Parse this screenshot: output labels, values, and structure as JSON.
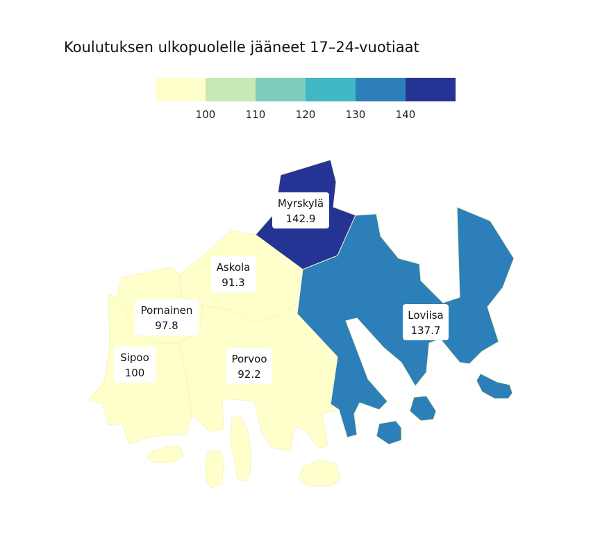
{
  "title": "Koulutuksen ulkopuolelle jääneet 17–24-vuotiaat",
  "legend": {
    "bins": [
      {
        "color": "#ffffcc"
      },
      {
        "color": "#c7e9b4"
      },
      {
        "color": "#7fcdbb"
      },
      {
        "color": "#41b6c4"
      },
      {
        "color": "#2c7fb8"
      },
      {
        "color": "#253494"
      }
    ],
    "ticks": [
      "100",
      "110",
      "120",
      "130",
      "140"
    ]
  },
  "municipalities": [
    {
      "id": "myrskyla",
      "name": "Myrskylä",
      "value": "142.9",
      "color": "#253494"
    },
    {
      "id": "askola",
      "name": "Askola",
      "value": "91.3",
      "color": "#ffffcc"
    },
    {
      "id": "pornainen",
      "name": "Pornainen",
      "value": "97.8",
      "color": "#ffffcc"
    },
    {
      "id": "sipoo",
      "name": "Sipoo",
      "value": "100",
      "color": "#ffffcc"
    },
    {
      "id": "porvoo",
      "name": "Porvoo",
      "value": "92.2",
      "color": "#ffffcc"
    },
    {
      "id": "loviisa",
      "name": "Loviisa",
      "value": "137.7",
      "color": "#2c7fb8"
    }
  ]
}
